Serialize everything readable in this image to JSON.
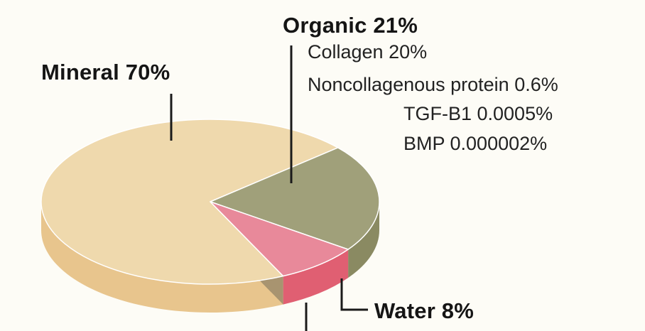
{
  "chart_data": {
    "type": "pie",
    "title": "",
    "slices": [
      {
        "label": "Mineral",
        "value": 70,
        "display": "Mineral 70%",
        "top_color": "#efd9ad",
        "side_color": "#e8c58d"
      },
      {
        "label": "Organic",
        "value": 21,
        "display": "Organic 21%",
        "top_color": "#a0a07a",
        "side_color": "#8a8a62"
      },
      {
        "label": "Water",
        "value": 8,
        "display": "Water 8%",
        "top_color": "#e8899a",
        "side_color": "#e05f72"
      }
    ],
    "organic_breakdown": [
      {
        "label": "Collagen",
        "value": 20,
        "display": "Collagen 20%"
      },
      {
        "label": "Noncollagenous protein",
        "value": 0.6,
        "display": "Noncollagenous protein 0.6%"
      },
      {
        "label": "TGF-B1",
        "value": 0.0005,
        "display": "TGF-B1 0.0005%"
      },
      {
        "label": "BMP",
        "value": 2e-06,
        "display": "BMP 0.000002%"
      }
    ],
    "style": "3d-pie",
    "legend": "none"
  }
}
